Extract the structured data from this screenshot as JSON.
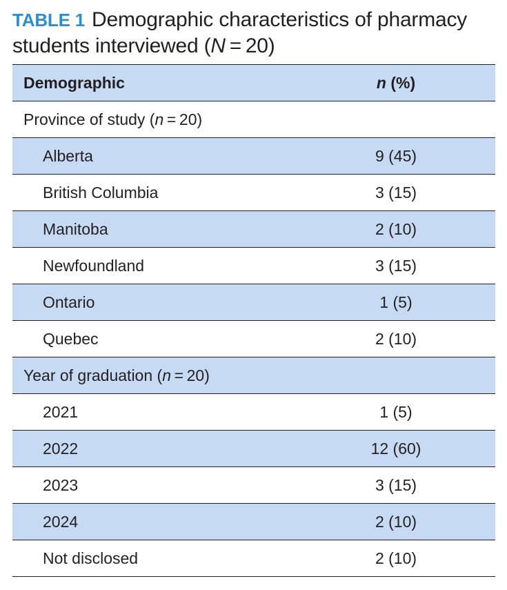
{
  "caption": {
    "label": "TABLE 1",
    "title_part1": "Demographic characteristics of pharmacy students interviewed (",
    "title_N": "N",
    "title_part2": " = 20)"
  },
  "header": {
    "col1": "Demographic",
    "col2_n": "n",
    "col2_rest": " (%)"
  },
  "groups": {
    "province": {
      "label": "Province of study (",
      "n": "n",
      "rest": " = 20)"
    },
    "year": {
      "label": "Year of graduation (",
      "n": "n",
      "rest": " = 20)"
    }
  },
  "rows": [
    {
      "label": "Alberta",
      "value": "9 (45)"
    },
    {
      "label": "British Columbia",
      "value": "3 (15)"
    },
    {
      "label": "Manitoba",
      "value": "2 (10)"
    },
    {
      "label": "Newfoundland",
      "value": "3 (15)"
    },
    {
      "label": "Ontario",
      "value": "1 (5)"
    },
    {
      "label": "Quebec",
      "value": "2 (10)"
    },
    {
      "label": "2021",
      "value": "1 (5)"
    },
    {
      "label": "2022",
      "value": "12 (60)"
    },
    {
      "label": "2023",
      "value": "3 (15)"
    },
    {
      "label": "2024",
      "value": "2 (10)"
    },
    {
      "label": "Not disclosed",
      "value": "2 (10)"
    }
  ],
  "colors": {
    "label_blue": "#2b8fcf",
    "shade": "#c6dbf3",
    "rule": "#231f20"
  }
}
